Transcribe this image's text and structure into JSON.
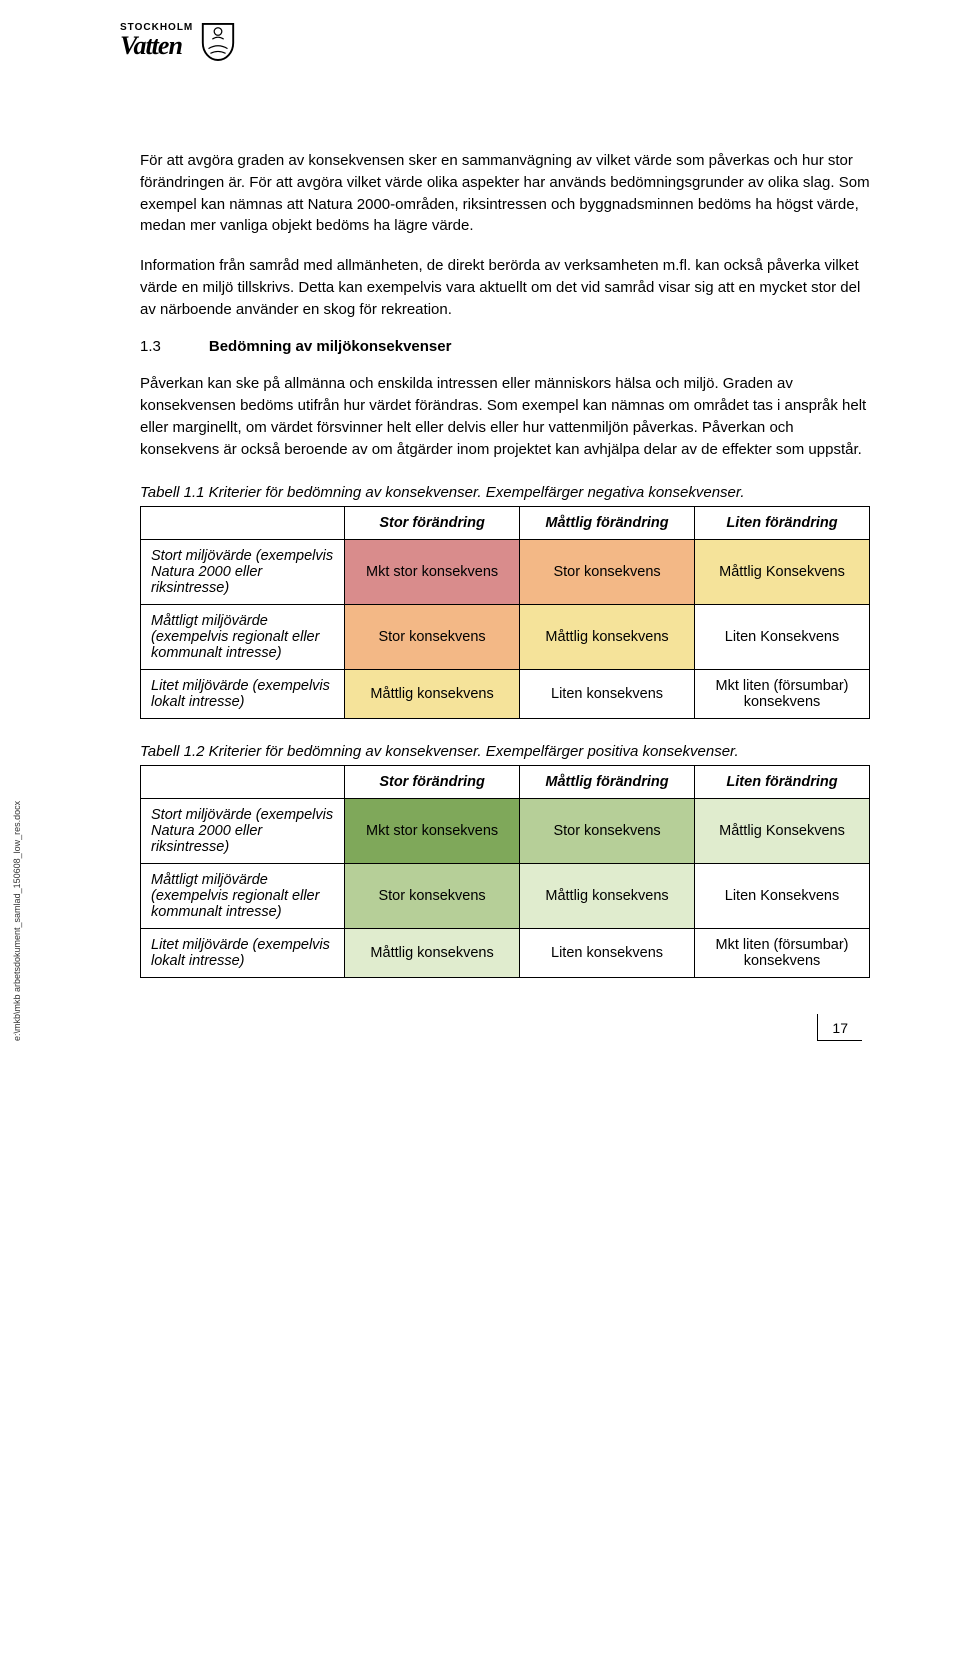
{
  "logo": {
    "small": "STOCKHOLM",
    "big": "Vatten"
  },
  "paragraphs": {
    "p1": "För att avgöra graden av konsekvensen sker en sammanvägning av vilket värde som påverkas och hur stor förändringen är. För att avgöra vilket värde olika aspekter har används bedömningsgrunder av olika slag. Som exempel kan nämnas att Natura 2000-områden, riksintressen och byggnadsminnen bedöms ha högst värde, medan mer vanliga objekt bedöms ha lägre värde.",
    "p2": "Information från samråd med allmänheten, de direkt berörda av verksamheten m.fl. kan också påverka vilket värde en miljö tillskrivs. Detta kan exempelvis vara aktuellt om det vid samråd visar sig att en mycket stor del av närboende använder en skog för rekreation.",
    "p3": "Påverkan kan ske på allmänna och enskilda intressen eller människors hälsa och miljö. Graden av konsekvensen bedöms utifrån hur värdet förändras. Som exempel kan nämnas om området tas i anspråk helt eller marginellt, om värdet försvinner helt eller delvis eller hur vattenmiljön påverkas. Påverkan och konsekvens är också beroende av om åtgärder inom projektet kan avhjälpa delar av de effekter som uppstår."
  },
  "section": {
    "num": "1.3",
    "title": "Bedömning av miljökonsekvenser"
  },
  "table1": {
    "caption": "Tabell 1.1 Kriterier för bedömning av konsekvenser. Exempelfärger negativa konsekvenser.",
    "headers": [
      "",
      "Stor förändring",
      "Måttlig förändring",
      "Liten förändring"
    ],
    "rows": [
      {
        "label": "Stort miljövärde (exempelvis Natura 2000 eller riksintresse)",
        "cells": [
          {
            "text": "Mkt stor konsekvens",
            "bg": "#d98c8c"
          },
          {
            "text": "Stor konsekvens",
            "bg": "#f3b886"
          },
          {
            "text": "Måttlig Konsekvens",
            "bg": "#f5e39a"
          }
        ]
      },
      {
        "label": "Måttligt miljövärde (exempelvis regionalt eller kommunalt intresse)",
        "cells": [
          {
            "text": "Stor konsekvens",
            "bg": "#f3b886"
          },
          {
            "text": "Måttlig konsekvens",
            "bg": "#f5e39a"
          },
          {
            "text": "Liten Konsekvens",
            "bg": "#ffffff"
          }
        ]
      },
      {
        "label": "Litet miljövärde (exempelvis lokalt intresse)",
        "cells": [
          {
            "text": "Måttlig konsekvens",
            "bg": "#f5e39a"
          },
          {
            "text": "Liten konsekvens",
            "bg": "#ffffff"
          },
          {
            "text": "Mkt liten (försumbar) konsekvens",
            "bg": "#ffffff"
          }
        ]
      }
    ]
  },
  "table2": {
    "caption": "Tabell 1.2 Kriterier för bedömning av konsekvenser. Exempelfärger positiva konsekvenser.",
    "headers": [
      "",
      "Stor förändring",
      "Måttlig förändring",
      "Liten förändring"
    ],
    "rows": [
      {
        "label": "Stort miljövärde (exempelvis Natura 2000 eller riksintresse)",
        "cells": [
          {
            "text": "Mkt stor konsekvens",
            "bg": "#7fa85a"
          },
          {
            "text": "Stor konsekvens",
            "bg": "#b6cf98"
          },
          {
            "text": "Måttlig Konsekvens",
            "bg": "#e0ecce"
          }
        ]
      },
      {
        "label": "Måttligt miljövärde (exempelvis regionalt eller kommunalt intresse)",
        "cells": [
          {
            "text": "Stor konsekvens",
            "bg": "#b6cf98"
          },
          {
            "text": "Måttlig konsekvens",
            "bg": "#e0ecce"
          },
          {
            "text": "Liten Konsekvens",
            "bg": "#ffffff"
          }
        ]
      },
      {
        "label": "Litet miljövärde (exempelvis lokalt intresse)",
        "cells": [
          {
            "text": "Måttlig konsekvens",
            "bg": "#e0ecce"
          },
          {
            "text": "Liten konsekvens",
            "bg": "#ffffff"
          },
          {
            "text": "Mkt liten (försumbar) konsekvens",
            "bg": "#ffffff"
          }
        ]
      }
    ]
  },
  "footer_path": "e:\\mkb\\mkb arbetsdokument_samlad_150608_low_res.docx",
  "page_number": "17"
}
